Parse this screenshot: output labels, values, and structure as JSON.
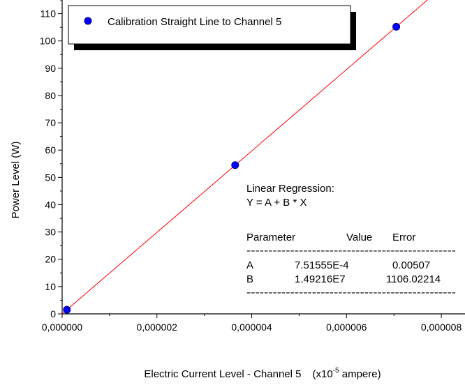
{
  "chart_data": {
    "type": "scatter",
    "title": "",
    "xlabel": "Electric Current Level - Channel 5",
    "xlabel_unit": "(x10",
    "xlabel_unit_exp": "-5",
    "xlabel_unit_tail": " ampere)",
    "ylabel": "Power Level (W)",
    "xlim": [
      0,
      8.5e-06
    ],
    "ylim": [
      0,
      115
    ],
    "x_ticks": [
      0,
      2e-06,
      4e-06,
      6e-06,
      8e-06
    ],
    "x_tick_labels": [
      "0,000000",
      "0,000002",
      "0,000004",
      "0,000006",
      "0,000008"
    ],
    "y_ticks": [
      0,
      10,
      20,
      30,
      40,
      50,
      60,
      70,
      80,
      90,
      100,
      110
    ],
    "y_tick_labels": [
      "0",
      "10",
      "20",
      "30",
      "40",
      "50",
      "60",
      "70",
      "80",
      "90",
      "100",
      "110"
    ],
    "grid": false,
    "legend_position": "top-left",
    "series": [
      {
        "name": "Calibration Straight Line to Channel 5",
        "color": "#0000ff",
        "x": [
          1e-07,
          3.65e-06,
          7.05e-06
        ],
        "y": [
          1.5,
          54.5,
          105.2
        ]
      }
    ],
    "fit_line": {
      "color": "#ff0000",
      "A": 0.000751555,
      "B": 14921600,
      "x_range": [
        0,
        8.2e-06
      ]
    },
    "annotation": {
      "line1": "Linear Regression:",
      "line2": "Y = A + B * X",
      "header": [
        "Parameter",
        "Value",
        "Error"
      ],
      "separator": "------------------------------------------------",
      "rows": [
        [
          "A",
          "7.51555E-4",
          "0.00507"
        ],
        [
          "B",
          "1.49216E7",
          "1106.02214"
        ]
      ]
    }
  }
}
